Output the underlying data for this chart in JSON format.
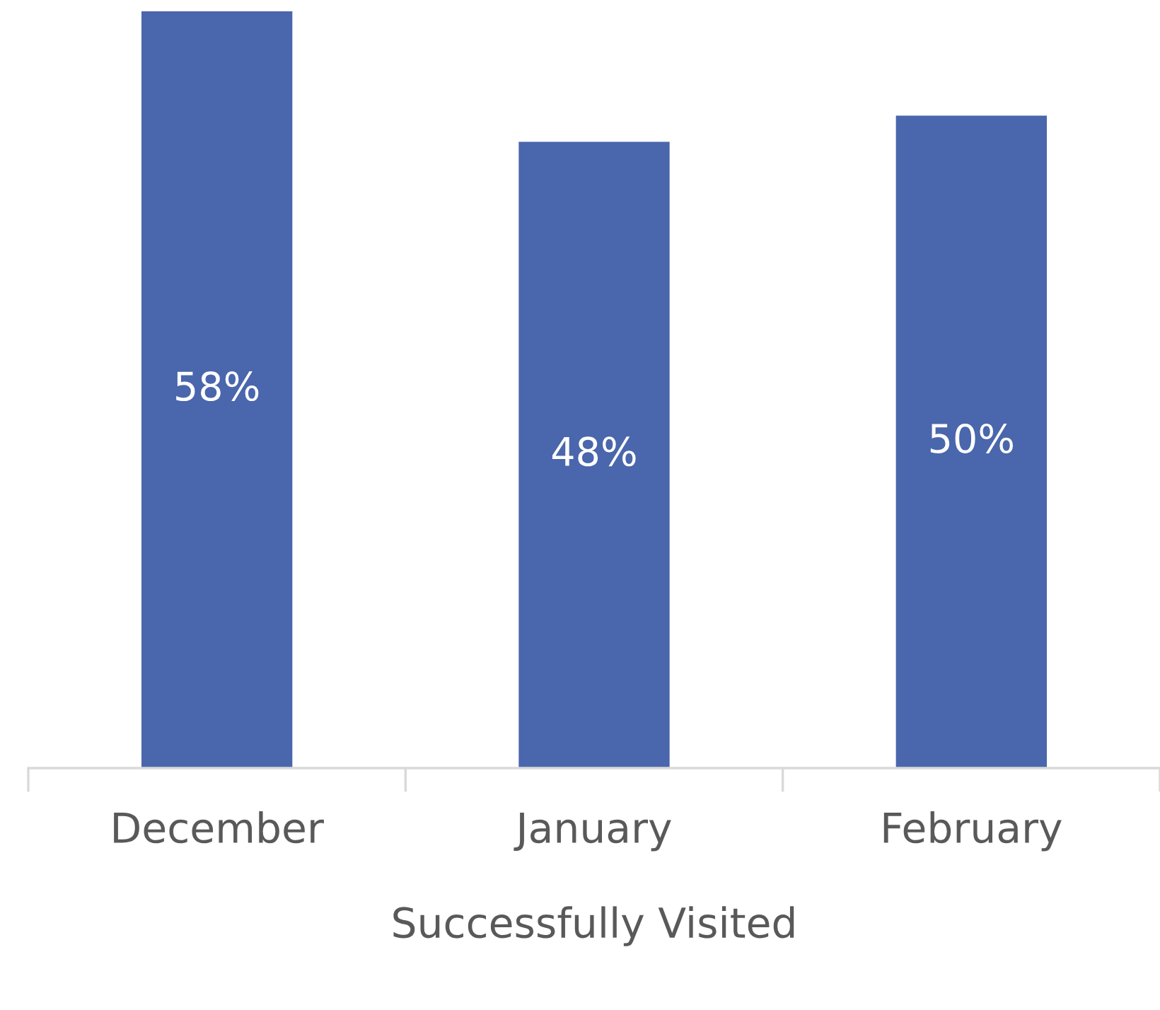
{
  "chart_data": {
    "type": "bar",
    "xlabel": "Successfully Visited",
    "categories": [
      "December",
      "January",
      "February"
    ],
    "values": [
      58,
      48,
      50
    ],
    "value_labels": [
      "58%",
      "48%",
      "50%"
    ],
    "color": "#4a66ac"
  }
}
